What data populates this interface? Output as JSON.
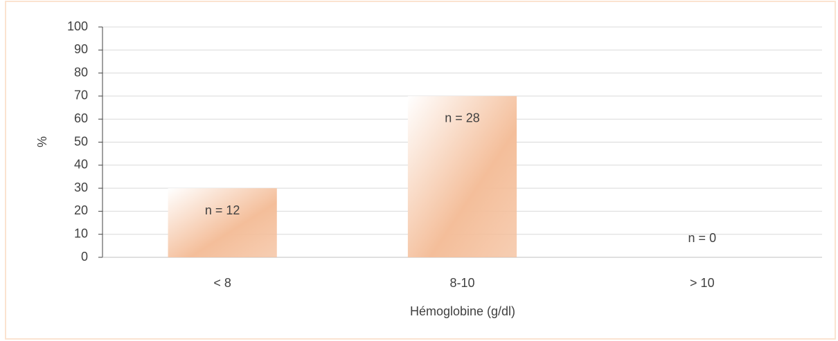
{
  "chart_data": {
    "type": "bar",
    "categories": [
      "< 8",
      "8-10",
      "> 10"
    ],
    "values": [
      30,
      70,
      0
    ],
    "annotations": [
      "n = 12",
      "n = 28",
      "n = 0"
    ],
    "color": "#f4be9a",
    "xlabel": "Hémoglobine (g/dl)",
    "ylabel": "%",
    "ylim": [
      0,
      100
    ],
    "yticks": [
      0,
      10,
      20,
      30,
      40,
      50,
      60,
      70,
      80,
      90,
      100
    ],
    "grid": true
  }
}
